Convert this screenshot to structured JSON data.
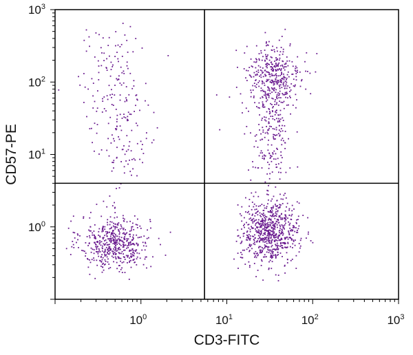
{
  "chart_data": {
    "type": "scatter",
    "title": "",
    "xlabel": "CD3-FITC",
    "ylabel": "CD57-PE",
    "x_scale": "log",
    "y_scale": "log",
    "xlim": [
      0.1,
      1000
    ],
    "ylim": [
      0.1,
      1000
    ],
    "x_ticks": [
      {
        "value": 1,
        "base": "10",
        "exp": "0"
      },
      {
        "value": 10,
        "base": "10",
        "exp": "1"
      },
      {
        "value": 100,
        "base": "10",
        "exp": "2"
      },
      {
        "value": 1000,
        "base": "10",
        "exp": "3"
      }
    ],
    "y_ticks": [
      {
        "value": 1,
        "base": "10",
        "exp": "0"
      },
      {
        "value": 10,
        "base": "10",
        "exp": "1"
      },
      {
        "value": 100,
        "base": "10",
        "exp": "2"
      },
      {
        "value": 1000,
        "base": "10",
        "exp": "3"
      }
    ],
    "quadrant_gates": {
      "x": 5.5,
      "y": 4.0
    },
    "grid": false,
    "legend": "none",
    "point_color": "#6a1b8f",
    "line_color": "#000000",
    "series": [
      {
        "clusters": [
          {
            "cx": 0.5,
            "cy": 0.6,
            "sx": 0.2,
            "sy": 0.19,
            "n": 520
          },
          {
            "cx": 0.48,
            "cy": 80,
            "sx": 0.22,
            "sy": 0.45,
            "n": 160
          },
          {
            "cx": 0.7,
            "cy": 12,
            "sx": 0.1,
            "sy": 0.3,
            "n": 55
          },
          {
            "cx": 32,
            "cy": 0.85,
            "sx": 0.17,
            "sy": 0.22,
            "n": 720
          },
          {
            "cx": 35,
            "cy": 110,
            "sx": 0.16,
            "sy": 0.25,
            "n": 420
          },
          {
            "cx": 32,
            "cy": 15,
            "sx": 0.12,
            "sy": 0.3,
            "n": 160
          }
        ]
      }
    ]
  }
}
